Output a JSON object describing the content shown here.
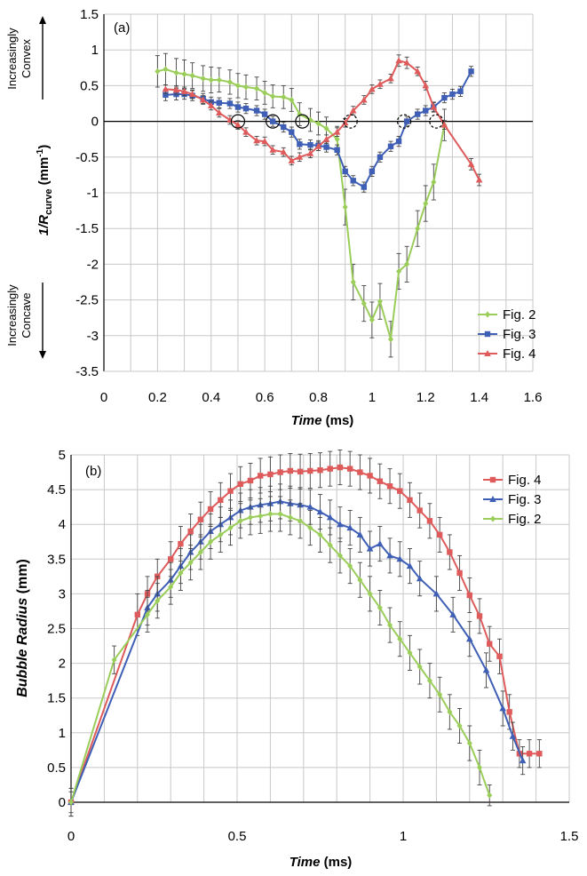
{
  "colors": {
    "fig2": "#9acd5a",
    "fig3": "#3e5fb5",
    "fig4": "#df5b5b",
    "grid": "#c8c8c8",
    "errorbar": "#444444",
    "axis": "#000000"
  },
  "chart_data": [
    {
      "type": "line",
      "panel_label": "(a)",
      "xlabel_italic": "Time",
      "xlabel_unit": " (ms)",
      "ylabel_main": "1/R",
      "ylabel_sub": "curve",
      "ylabel_unit_pre": " (mm",
      "ylabel_unit_sup": "-1",
      "ylabel_unit_post": ")",
      "xlim": [
        0,
        1.6
      ],
      "ylim": [
        -3.5,
        1.5
      ],
      "xticks": [
        "0",
        "0.2",
        "0.4",
        "0.6",
        "0.8",
        "1",
        "1.2",
        "1.4",
        "1.6"
      ],
      "yticks": [
        "1.5",
        "1",
        "0.5",
        "0",
        "-0.5",
        "-1",
        "-1.5",
        "-2",
        "-2.5",
        "-3",
        "-3.5"
      ],
      "convex_label": [
        "Increasingly",
        "Convex"
      ],
      "concave_label": [
        "Increasingly",
        "Concave"
      ],
      "legend_position": "bottom-right",
      "grid": true,
      "series": [
        {
          "name": "Fig. 2",
          "color_key": "fig2",
          "marker": "diamond",
          "x": [
            0.2,
            0.23,
            0.27,
            0.3,
            0.33,
            0.37,
            0.4,
            0.43,
            0.47,
            0.5,
            0.53,
            0.57,
            0.6,
            0.63,
            0.67,
            0.7,
            0.73,
            0.77,
            0.8,
            0.83,
            0.87,
            0.9,
            0.93,
            0.97,
            1.0,
            1.03,
            1.07,
            1.1,
            1.13,
            1.17,
            1.2,
            1.23,
            1.27
          ],
          "y": [
            0.7,
            0.73,
            0.68,
            0.66,
            0.64,
            0.6,
            0.58,
            0.58,
            0.55,
            0.5,
            0.48,
            0.46,
            0.4,
            0.35,
            0.34,
            0.3,
            0.1,
            0.02,
            -0.03,
            -0.1,
            -0.25,
            -1.2,
            -2.25,
            -2.55,
            -2.78,
            -2.52,
            -3.05,
            -2.1,
            -2.0,
            -1.5,
            -1.15,
            -0.85,
            -0.05
          ],
          "err": [
            0.22,
            0.22,
            0.2,
            0.2,
            0.18,
            0.18,
            0.18,
            0.17,
            0.17,
            0.17,
            0.17,
            0.16,
            0.16,
            0.16,
            0.16,
            0.16,
            0.16,
            0.16,
            0.16,
            0.16,
            0.18,
            0.25,
            0.25,
            0.25,
            0.25,
            0.25,
            0.25,
            0.25,
            0.25,
            0.25,
            0.25,
            0.25,
            0.22
          ]
        },
        {
          "name": "Fig. 3",
          "color_key": "fig3",
          "marker": "square",
          "x": [
            0.23,
            0.27,
            0.3,
            0.33,
            0.37,
            0.4,
            0.43,
            0.47,
            0.5,
            0.53,
            0.57,
            0.6,
            0.63,
            0.67,
            0.7,
            0.73,
            0.77,
            0.8,
            0.83,
            0.87,
            0.9,
            0.93,
            0.97,
            1.0,
            1.03,
            1.07,
            1.1,
            1.13,
            1.17,
            1.2,
            1.23,
            1.27,
            1.3,
            1.33,
            1.37
          ],
          "y": [
            0.37,
            0.38,
            0.38,
            0.36,
            0.32,
            0.27,
            0.26,
            0.25,
            0.2,
            0.18,
            0.15,
            0.1,
            0.0,
            -0.08,
            -0.15,
            -0.32,
            -0.33,
            -0.34,
            -0.36,
            -0.4,
            -0.7,
            -0.83,
            -0.92,
            -0.7,
            -0.5,
            -0.35,
            -0.28,
            0.0,
            0.1,
            0.15,
            0.2,
            0.33,
            0.38,
            0.42,
            0.7
          ],
          "err": [
            0.08,
            0.08,
            0.07,
            0.07,
            0.07,
            0.07,
            0.07,
            0.07,
            0.07,
            0.07,
            0.07,
            0.07,
            0.07,
            0.07,
            0.07,
            0.07,
            0.07,
            0.07,
            0.07,
            0.07,
            0.07,
            0.07,
            0.07,
            0.07,
            0.07,
            0.07,
            0.07,
            0.07,
            0.07,
            0.07,
            0.07,
            0.07,
            0.07,
            0.07,
            0.07
          ]
        },
        {
          "name": "Fig. 4",
          "color_key": "fig4",
          "marker": "triangle",
          "x": [
            0.23,
            0.27,
            0.3,
            0.33,
            0.37,
            0.4,
            0.43,
            0.47,
            0.5,
            0.53,
            0.57,
            0.6,
            0.63,
            0.67,
            0.7,
            0.73,
            0.77,
            0.8,
            0.83,
            0.87,
            0.9,
            0.93,
            0.97,
            1.0,
            1.03,
            1.07,
            1.1,
            1.13,
            1.17,
            1.2,
            1.23,
            1.27,
            1.37,
            1.4
          ],
          "y": [
            0.45,
            0.44,
            0.42,
            0.38,
            0.3,
            0.22,
            0.12,
            0.02,
            -0.05,
            -0.15,
            -0.27,
            -0.28,
            -0.4,
            -0.43,
            -0.55,
            -0.5,
            -0.45,
            -0.35,
            -0.25,
            -0.15,
            -0.02,
            0.15,
            0.3,
            0.45,
            0.52,
            0.6,
            0.85,
            0.82,
            0.7,
            0.5,
            0.2,
            -0.05,
            -0.6,
            -0.82
          ],
          "err": [
            0.06,
            0.06,
            0.06,
            0.06,
            0.06,
            0.06,
            0.06,
            0.06,
            0.06,
            0.06,
            0.06,
            0.06,
            0.06,
            0.06,
            0.06,
            0.06,
            0.06,
            0.06,
            0.06,
            0.06,
            0.06,
            0.06,
            0.06,
            0.06,
            0.06,
            0.06,
            0.08,
            0.08,
            0.06,
            0.06,
            0.06,
            0.06,
            0.08,
            0.08
          ]
        }
      ],
      "circles_solid_x": [
        0.5,
        0.63,
        0.74
      ],
      "circles_dashed_x": [
        0.92,
        1.12,
        1.24
      ]
    },
    {
      "type": "line",
      "panel_label": "(b)",
      "xlabel_italic": "Time",
      "xlabel_unit": " (ms)",
      "ylabel_italic": "Bubble Radius",
      "ylabel_unit": " (mm)",
      "xlim": [
        0,
        1.5
      ],
      "ylim": [
        0,
        5
      ],
      "xticks": [
        "0",
        "0.5",
        "1",
        "1.5"
      ],
      "yticks": [
        "5",
        "4.5",
        "4",
        "3.5",
        "3",
        "2.5",
        "2",
        "1.5",
        "1",
        "0.5",
        "0"
      ],
      "legend_position": "top-right",
      "grid": true,
      "series": [
        {
          "name": "Fig. 4",
          "color_key": "fig4",
          "marker": "square",
          "x": [
            0,
            0.2,
            0.23,
            0.26,
            0.3,
            0.33,
            0.36,
            0.39,
            0.42,
            0.45,
            0.48,
            0.51,
            0.54,
            0.57,
            0.6,
            0.63,
            0.66,
            0.69,
            0.72,
            0.75,
            0.78,
            0.81,
            0.84,
            0.87,
            0.9,
            0.93,
            0.96,
            0.99,
            1.02,
            1.05,
            1.08,
            1.11,
            1.14,
            1.17,
            1.2,
            1.23,
            1.26,
            1.29,
            1.32,
            1.35,
            1.38,
            1.41
          ],
          "y": [
            0,
            2.7,
            3.0,
            3.25,
            3.5,
            3.72,
            3.9,
            4.07,
            4.22,
            4.35,
            4.48,
            4.58,
            4.63,
            4.7,
            4.72,
            4.75,
            4.77,
            4.76,
            4.77,
            4.78,
            4.8,
            4.82,
            4.8,
            4.75,
            4.7,
            4.62,
            4.55,
            4.48,
            4.35,
            4.2,
            4.05,
            3.85,
            3.6,
            3.3,
            2.98,
            2.68,
            2.28,
            2.1,
            1.3,
            0.7,
            0.7,
            0.7
          ],
          "err": [
            0.2,
            0.3,
            0.25,
            0.25,
            0.25,
            0.25,
            0.25,
            0.25,
            0.25,
            0.25,
            0.25,
            0.25,
            0.25,
            0.25,
            0.25,
            0.25,
            0.25,
            0.25,
            0.25,
            0.25,
            0.25,
            0.25,
            0.25,
            0.25,
            0.25,
            0.25,
            0.25,
            0.25,
            0.25,
            0.25,
            0.25,
            0.25,
            0.25,
            0.25,
            0.25,
            0.25,
            0.25,
            0.25,
            0.25,
            0.2,
            0.2,
            0.2
          ]
        },
        {
          "name": "Fig. 3",
          "color_key": "fig3",
          "marker": "triangle",
          "x": [
            0,
            0.23,
            0.26,
            0.3,
            0.33,
            0.36,
            0.39,
            0.42,
            0.45,
            0.48,
            0.51,
            0.54,
            0.57,
            0.6,
            0.63,
            0.66,
            0.69,
            0.72,
            0.75,
            0.78,
            0.81,
            0.84,
            0.87,
            0.9,
            0.93,
            0.96,
            0.99,
            1.02,
            1.05,
            1.1,
            1.15,
            1.2,
            1.25,
            1.3,
            1.33,
            1.36
          ],
          "y": [
            0,
            2.8,
            3.0,
            3.2,
            3.4,
            3.6,
            3.75,
            3.9,
            4.0,
            4.1,
            4.2,
            4.25,
            4.28,
            4.3,
            4.33,
            4.3,
            4.28,
            4.25,
            4.18,
            4.1,
            4.0,
            3.95,
            3.85,
            3.65,
            3.72,
            3.55,
            3.5,
            3.4,
            3.22,
            3.0,
            2.7,
            2.35,
            1.9,
            1.35,
            0.95,
            0.6
          ],
          "err": [
            0.15,
            0.25,
            0.25,
            0.25,
            0.25,
            0.25,
            0.25,
            0.25,
            0.25,
            0.25,
            0.25,
            0.25,
            0.25,
            0.25,
            0.25,
            0.25,
            0.25,
            0.25,
            0.25,
            0.25,
            0.25,
            0.25,
            0.25,
            0.25,
            0.25,
            0.25,
            0.25,
            0.25,
            0.25,
            0.25,
            0.25,
            0.25,
            0.25,
            0.25,
            0.2,
            0.2
          ]
        },
        {
          "name": "Fig. 2",
          "color_key": "fig2",
          "marker": "diamond",
          "x": [
            0,
            0.13,
            0.23,
            0.26,
            0.3,
            0.33,
            0.36,
            0.39,
            0.42,
            0.45,
            0.48,
            0.51,
            0.54,
            0.57,
            0.6,
            0.63,
            0.66,
            0.69,
            0.72,
            0.75,
            0.78,
            0.81,
            0.84,
            0.87,
            0.9,
            0.93,
            0.96,
            0.99,
            1.02,
            1.05,
            1.08,
            1.11,
            1.14,
            1.17,
            1.2,
            1.23,
            1.26
          ],
          "y": [
            0,
            2.05,
            2.7,
            2.9,
            3.1,
            3.3,
            3.45,
            3.6,
            3.75,
            3.85,
            3.95,
            4.05,
            4.1,
            4.12,
            4.15,
            4.15,
            4.1,
            4.05,
            3.95,
            3.85,
            3.7,
            3.55,
            3.4,
            3.2,
            3.0,
            2.8,
            2.55,
            2.35,
            2.15,
            1.95,
            1.75,
            1.55,
            1.3,
            1.1,
            0.85,
            0.5,
            0.1
          ],
          "err": [
            0.2,
            0.2,
            0.25,
            0.25,
            0.25,
            0.25,
            0.25,
            0.25,
            0.25,
            0.25,
            0.25,
            0.25,
            0.25,
            0.25,
            0.25,
            0.25,
            0.25,
            0.25,
            0.25,
            0.25,
            0.25,
            0.25,
            0.25,
            0.25,
            0.25,
            0.25,
            0.25,
            0.25,
            0.25,
            0.25,
            0.25,
            0.25,
            0.25,
            0.25,
            0.25,
            0.25,
            0.15
          ]
        }
      ]
    }
  ]
}
